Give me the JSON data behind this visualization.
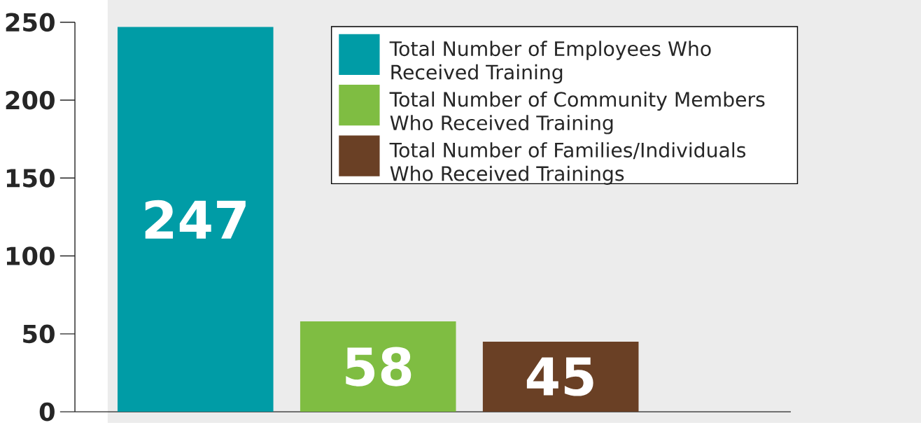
{
  "chart_data": {
    "type": "bar",
    "categories": [
      null,
      null,
      null
    ],
    "series": [
      {
        "name": "Total Number of Employees Who Received Training",
        "color": "#009ca6",
        "values": [
          247,
          null,
          null
        ]
      },
      {
        "name": "Total Number of Community Members Who Received Training",
        "color": "#7fbd42",
        "values": [
          null,
          58,
          null
        ]
      },
      {
        "name": "Total Number of Families/Individuals Who Received Trainings",
        "color": "#6a4025",
        "values": [
          null,
          null,
          45
        ]
      }
    ],
    "ylim": [
      0,
      250
    ],
    "yticks": [
      0,
      50,
      100,
      150,
      200,
      250
    ],
    "data_labels": true,
    "legend": "top right"
  }
}
